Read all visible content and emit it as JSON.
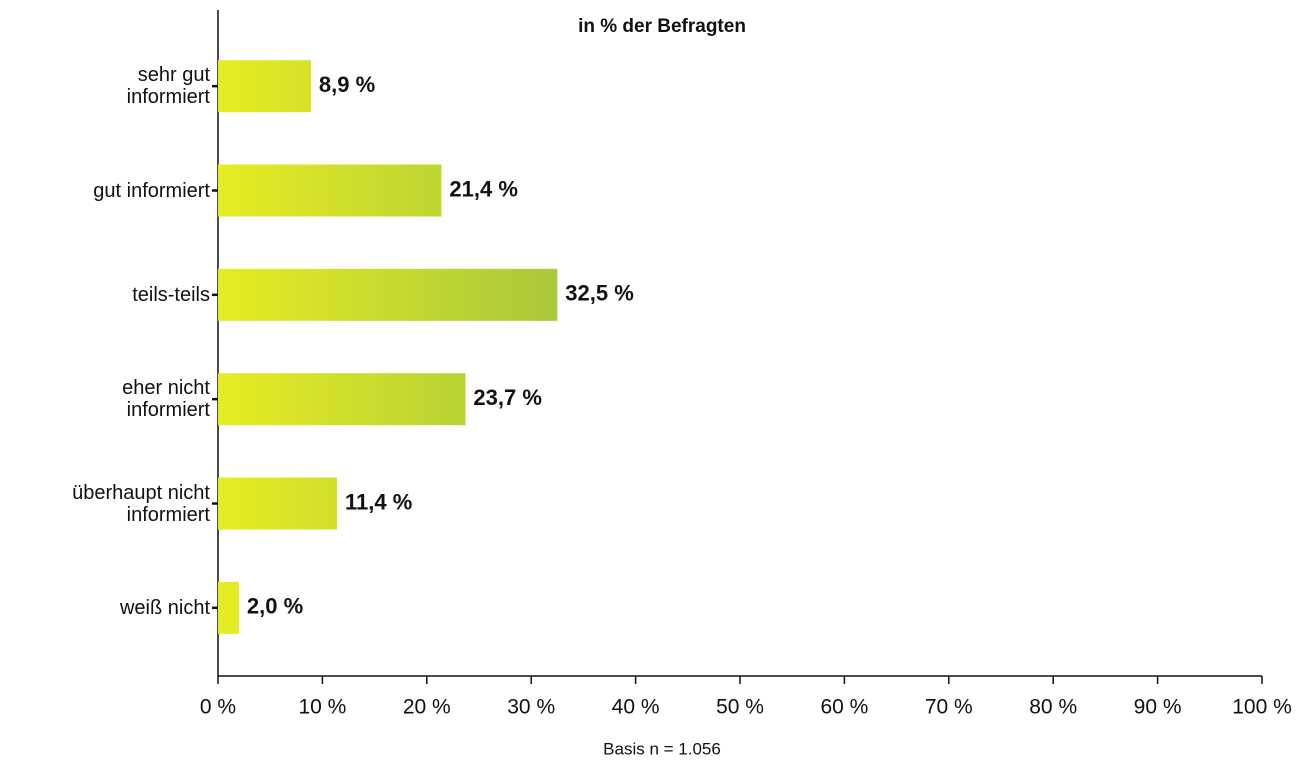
{
  "chart_data": {
    "type": "barh",
    "title": "in % der Befragten",
    "note": "Basis n = 1.056",
    "categories": [
      "sehr gut\ninformiert",
      "gut informiert",
      "teils-teils",
      "eher nicht\ninformiert",
      "überhaupt nicht\ninformiert",
      "weiß nicht"
    ],
    "values": [
      8.9,
      21.4,
      32.5,
      23.7,
      11.4,
      2.0
    ],
    "value_labels": [
      "8,9 %",
      "21,4 %",
      "32,5 %",
      "23,7 %",
      "11,4 %",
      "2,0 %"
    ],
    "colors": [
      "#e6ec22",
      "#a8c83b"
    ],
    "xlim": [
      0,
      100
    ],
    "xticks": [
      {
        "value": 0,
        "label": "0 %"
      },
      {
        "value": 10,
        "label": "10 %"
      },
      {
        "value": 20,
        "label": "20 %"
      },
      {
        "value": 30,
        "label": "30 %"
      },
      {
        "value": 40,
        "label": "40 %"
      },
      {
        "value": 50,
        "label": "50 %"
      },
      {
        "value": 60,
        "label": "60 %"
      },
      {
        "value": 70,
        "label": "70 %"
      },
      {
        "value": 80,
        "label": "80 %"
      },
      {
        "value": 90,
        "label": "90 %"
      },
      {
        "value": 100,
        "label": "100 %"
      }
    ],
    "grid": false
  }
}
